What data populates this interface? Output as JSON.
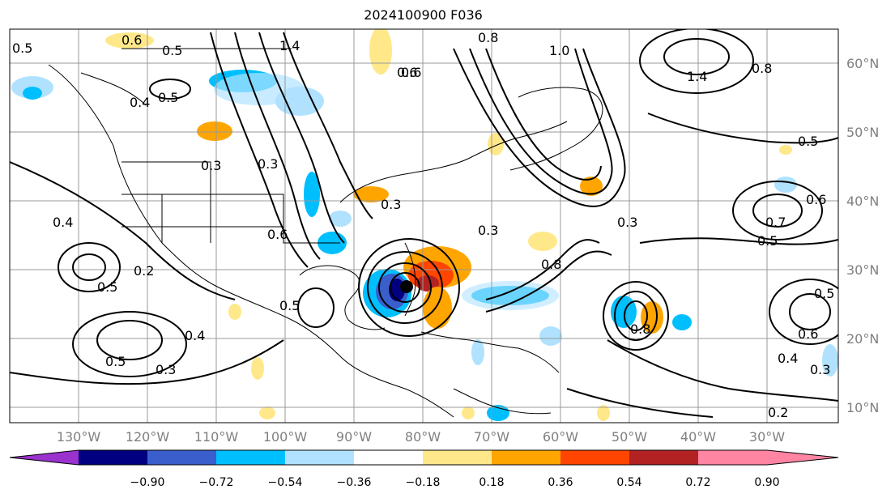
{
  "title": "2024100900 F036",
  "lat_labels": [
    "60°N",
    "50°N",
    "40°N",
    "30°N",
    "20°N",
    "10°N"
  ],
  "lon_labels": [
    "130°W",
    "120°W",
    "110°W",
    "100°W",
    "90°W",
    "80°W",
    "70°W",
    "60°W",
    "50°W",
    "40°W",
    "30°W"
  ],
  "colorbar": {
    "ticks": [
      "−0.90",
      "−0.72",
      "−0.54",
      "−0.36",
      "−0.18",
      "0.18",
      "0.36",
      "0.54",
      "0.72",
      "0.90"
    ],
    "colors": [
      "#9a32cd",
      "#000080",
      "#3a5fcd",
      "#00bfff",
      "#b0e2ff",
      "#ffffff",
      "#ffe88a",
      "#ffa500",
      "#ff4500",
      "#b22222",
      "#ff85a2"
    ]
  },
  "contour_labels": [
    "0.5",
    "0.6",
    "0.5",
    "1.4",
    "0.6",
    "0.8",
    "1.0",
    "0.4",
    "0.5",
    "0.3",
    "0.4",
    "0.3",
    "0.5",
    "0.6",
    "0.5",
    "0.3",
    "0.2",
    "0.4",
    "0.5",
    "0.3",
    "0.6",
    "0.3",
    "0.8",
    "0.3",
    "0.8",
    "0.5",
    "0.6",
    "0.7",
    "0.5",
    "0.5",
    "0.6",
    "0.4",
    "0.2",
    "0.3",
    "1.4",
    "0.8"
  ],
  "feature": "storm-center-marker"
}
